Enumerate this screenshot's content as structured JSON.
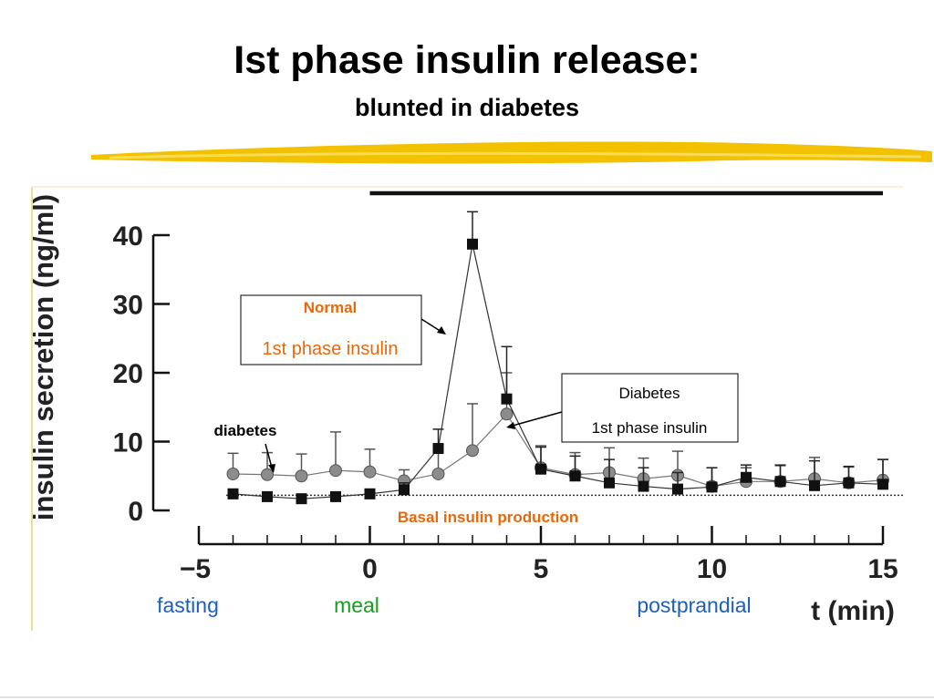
{
  "slide": {
    "title": "Ist phase insulin release:",
    "subtitle": "blunted in diabetes"
  },
  "colors": {
    "highlight": "#f2c200",
    "orange": "#e8680a",
    "blue": "#1d5fbf",
    "green": "#14a01e"
  },
  "chart_data": {
    "type": "line",
    "title": "",
    "ylabel": "insulin secretion (ng/ml)",
    "xlabel": "t (min)",
    "xlim": [
      -5,
      15
    ],
    "ylim": [
      0,
      40
    ],
    "x_ticks": [
      -5,
      0,
      5,
      10,
      15
    ],
    "y_ticks": [
      0,
      10,
      20,
      30,
      40
    ],
    "grid": false,
    "series": [
      {
        "name": "Normal",
        "marker": "square",
        "x": [
          -4,
          -3,
          -2,
          -1,
          0,
          1,
          2,
          3,
          4,
          5,
          6,
          7,
          8,
          9,
          10,
          11,
          12,
          13,
          14,
          15
        ],
        "values": [
          2.4,
          2.0,
          1.7,
          2.0,
          2.4,
          3.0,
          9.0,
          38.7,
          16.2,
          6.0,
          5.0,
          4.0,
          3.5,
          3.1,
          3.4,
          4.8,
          4.2,
          3.6,
          4.0,
          3.8
        ],
        "error": [
          0.7,
          0.5,
          0.4,
          0.5,
          0.7,
          1.0,
          2.8,
          4.7,
          7.6,
          3.2,
          2.9,
          3.4,
          2.7,
          2.4,
          2.8,
          1.8,
          2.4,
          3.6,
          2.4,
          3.6
        ]
      },
      {
        "name": "diabetes",
        "marker": "circle",
        "x": [
          -4,
          -3,
          -2,
          -1,
          0,
          1,
          2,
          3,
          4,
          5,
          6,
          7,
          8,
          9,
          10,
          11,
          12,
          13,
          14,
          15
        ],
        "values": [
          5.3,
          5.2,
          5.0,
          5.8,
          5.6,
          4.3,
          5.3,
          8.7,
          14.0,
          6.2,
          5.2,
          5.5,
          4.6,
          5.1,
          3.5,
          4.2,
          4.2,
          4.6,
          4.0,
          4.4
        ],
        "error": [
          3.0,
          3.2,
          3.2,
          5.6,
          3.3,
          1.6,
          3.3,
          6.8,
          6.0,
          3.2,
          3.2,
          3.6,
          3.0,
          3.5,
          2.7,
          2.0,
          2.3,
          3.1,
          2.3,
          3.0
        ]
      }
    ],
    "basal_level": 2.2,
    "meal_bar_x": [
      0,
      15
    ],
    "phases": [
      "fasting",
      "meal",
      "postprandial"
    ],
    "annotations": {
      "normal_box_title": "Normal",
      "normal_box_text": "1st phase insulin",
      "diabetes_box_title": "Diabetes",
      "diabetes_box_text": "1st phase insulin",
      "diabetes_label": "diabetes",
      "basal_label": "Basal insulin production"
    }
  }
}
